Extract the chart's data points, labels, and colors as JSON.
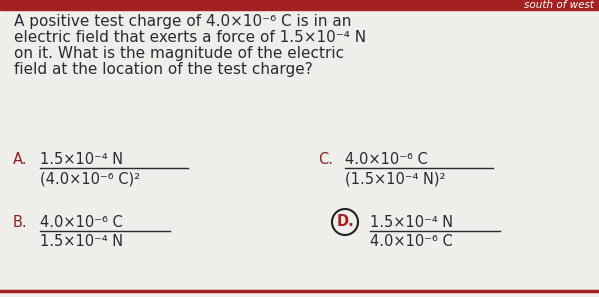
{
  "bg_color": "#f0eeea",
  "header_bar_color": "#a52020",
  "header_text": "south of west",
  "text_color": "#2a2a35",
  "label_color": "#8B2020",
  "circle_edge_color": "#222222",
  "circle_label_color": "#a52020",
  "fraction_line_color": "#2a2a35",
  "question_line1": "A positive test charge of 4.0×10⁻⁶ C is in an",
  "question_line2": "electric field that exerts a force of 1.5×10⁻⁴ N",
  "question_line3": "on it. What is the magnitude of the electric",
  "question_line4": "field at the location of the test charge?",
  "A_num": "1.5×10⁻⁴ N",
  "A_den": "(4.0×10⁻⁶ C)²",
  "B_num": "4.0×10⁻⁶ C",
  "B_den": "1.5×10⁻⁴ N",
  "C_num": "4.0×10⁻⁶ C",
  "C_den": "(1.5×10⁻⁴ N)²",
  "D_num": "1.5×10⁻⁴ N",
  "D_den": "4.0×10⁻⁶ C",
  "font_size_q": 11.0,
  "font_size_ans": 10.5,
  "font_size_label": 10.5,
  "font_size_header": 7.5
}
